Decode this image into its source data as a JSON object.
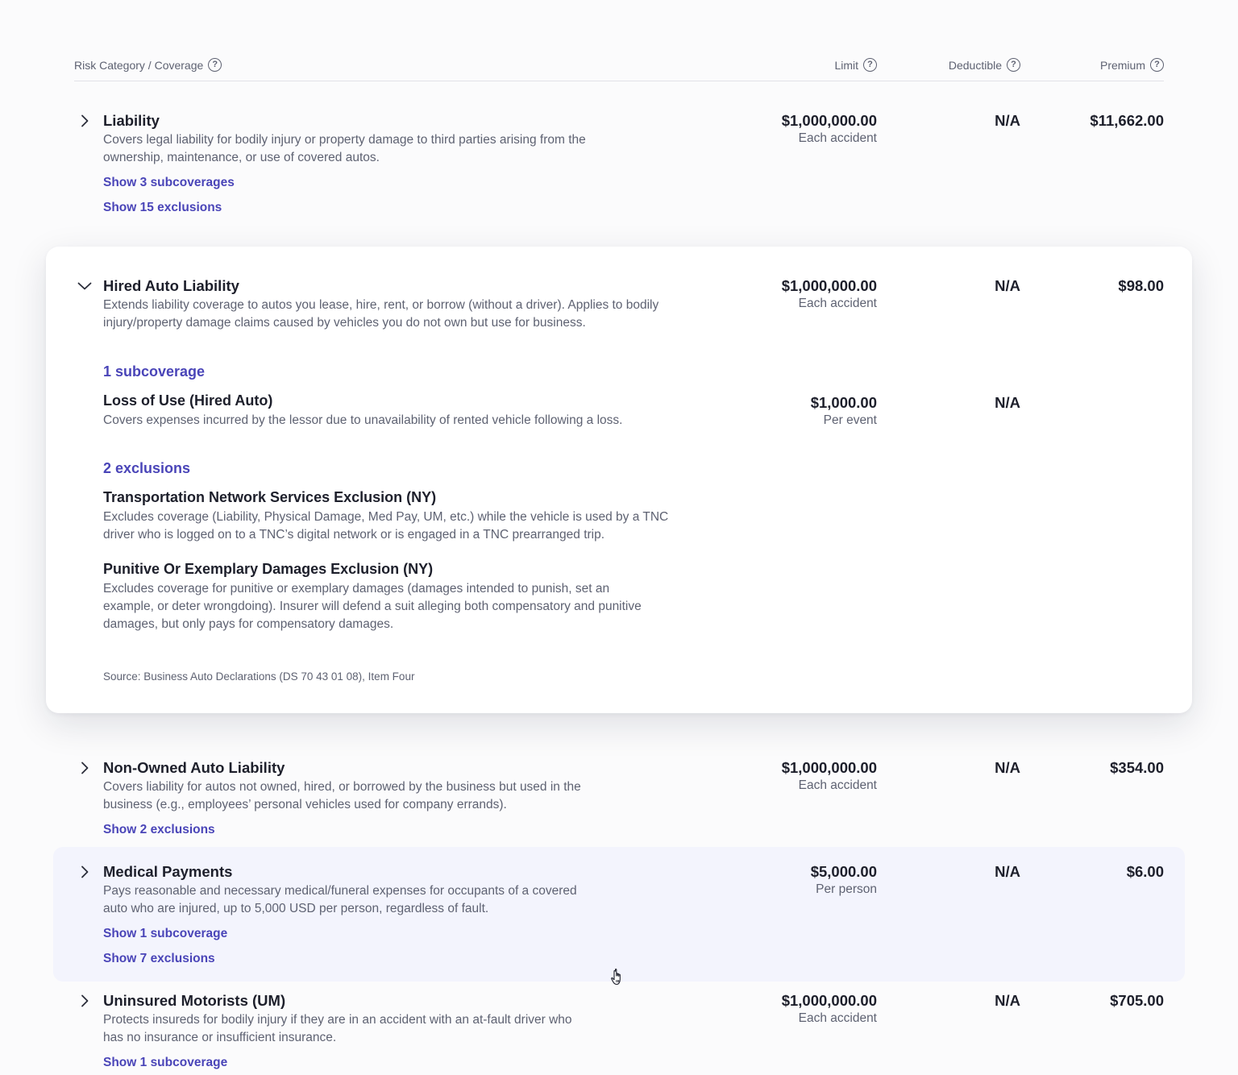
{
  "header": {
    "risk_category": "Risk Category / Coverage",
    "limit": "Limit",
    "deductible": "Deductible",
    "premium": "Premium"
  },
  "rows": [
    {
      "title": "Liability",
      "desc": "Covers legal liability for bodily injury or property damage to third parties arising from the ownership, maintenance, or use of covered autos.",
      "limit": "$1,000,000.00",
      "limit_sub": "Each accident",
      "deductible": "N/A",
      "premium": "$11,662.00",
      "links": [
        "Show 3 subcoverages",
        "Show 15 exclusions"
      ]
    },
    {
      "title": "Hired Auto Liability",
      "desc": "Extends liability coverage to autos you lease, hire, rent, or borrow (without a driver). Applies to bodily injury/property damage claims caused by vehicles you do not own but use for business.",
      "limit": "$1,000,000.00",
      "limit_sub": "Each accident",
      "deductible": "N/A",
      "premium": "$98.00",
      "subcoverage_heading": "1 subcoverage",
      "subcoverages": [
        {
          "title": "Loss of Use (Hired Auto)",
          "desc": "Covers expenses incurred by the lessor due to unavailability of rented vehicle following a loss.",
          "limit": "$1,000.00",
          "limit_sub": "Per event",
          "deductible": "N/A"
        }
      ],
      "exclusion_heading": "2 exclusions",
      "exclusions": [
        {
          "title": "Transportation Network Services Exclusion (NY)",
          "desc": "Excludes coverage (Liability, Physical Damage, Med Pay, UM, etc.) while the vehicle is used by a TNC driver who is logged on to a TNC’s digital network or is engaged in a TNC prearranged trip."
        },
        {
          "title": "Punitive Or Exemplary Damages Exclusion (NY)",
          "desc": "Excludes coverage for punitive or exemplary damages (damages intended to punish, set an example, or deter wrongdoing). Insurer will defend a suit alleging both compensatory and punitive damages, but only pays for compensatory damages."
        }
      ],
      "source": "Source: Business Auto Declarations (DS 70 43 01 08), Item Four"
    },
    {
      "title": "Non-Owned Auto Liability",
      "desc": "Covers liability for autos not owned, hired, or borrowed by the business but used in the business (e.g., employees’ personal vehicles used for company errands).",
      "limit": "$1,000,000.00",
      "limit_sub": "Each accident",
      "deductible": "N/A",
      "premium": "$354.00",
      "links": [
        "Show 2 exclusions"
      ]
    },
    {
      "title": "Medical Payments",
      "desc": "Pays reasonable and necessary medical/funeral expenses for occupants of a covered auto who are injured, up to 5,000 USD per person, regardless of fault.",
      "limit": "$5,000.00",
      "limit_sub": "Per person",
      "deductible": "N/A",
      "premium": "$6.00",
      "links": [
        "Show 1 subcoverage",
        "Show 7 exclusions"
      ]
    },
    {
      "title": "Uninsured Motorists (UM)",
      "desc": "Protects insureds for bodily injury if they are in an accident with an at-fault driver who has no insurance or insufficient insurance.",
      "limit": "$1,000,000.00",
      "limit_sub": "Each accident",
      "deductible": "N/A",
      "premium": "$705.00",
      "links": [
        "Show 1 subcoverage"
      ]
    }
  ],
  "colors": {
    "link": "#4a45b8",
    "text": "#1d1f2b",
    "muted": "#5e6272",
    "hover_row": "#f3f4fd"
  }
}
